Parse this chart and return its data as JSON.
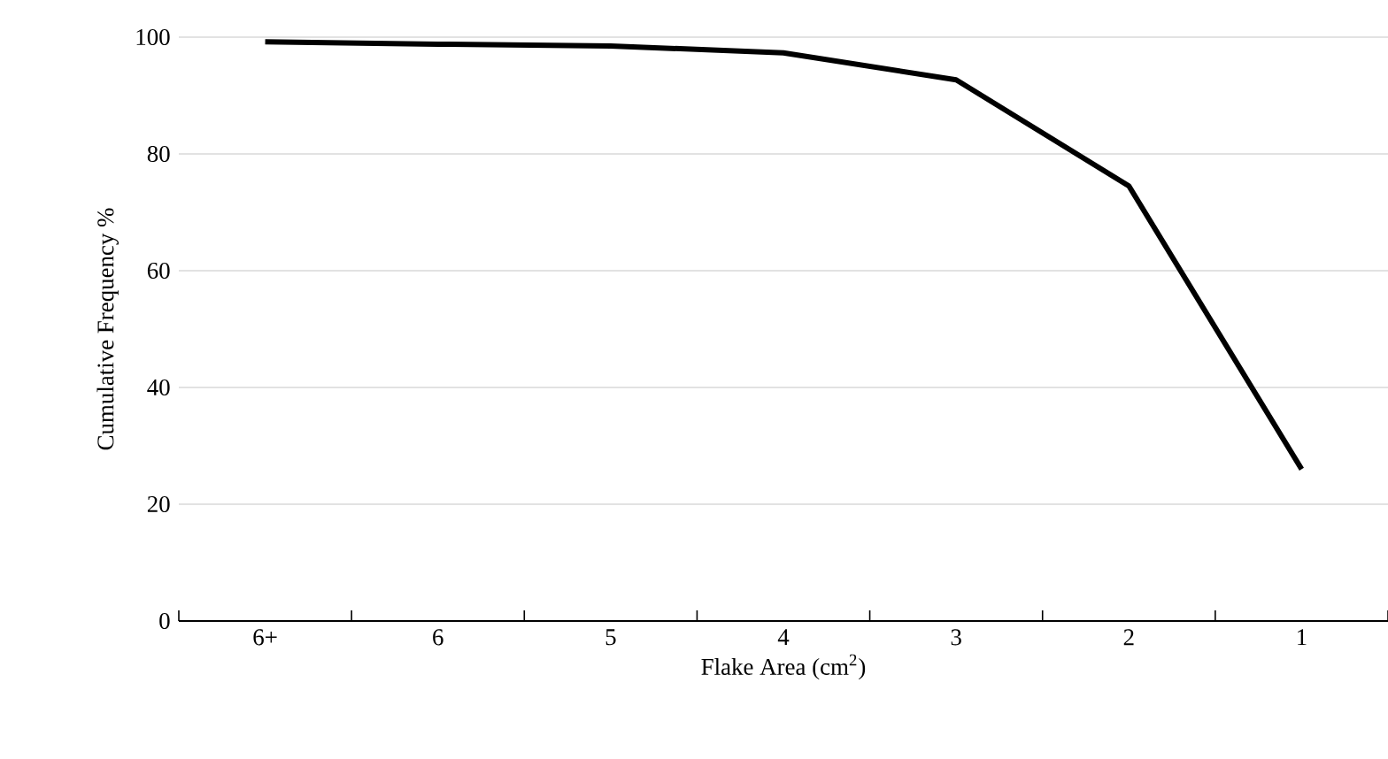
{
  "chart_data": {
    "type": "line",
    "xlabel": "Flake Area (cm$^{2}$)",
    "ylabel": "Cumulative Frequency %",
    "categories": [
      "6+",
      "6",
      "5",
      "4",
      "3",
      "2",
      "1"
    ],
    "series": [
      {
        "color": "#000000",
        "values": [
          99.2,
          98.8,
          98.5,
          97.3,
          92.7,
          74.5,
          26
        ]
      }
    ],
    "ylim": [
      0,
      100
    ],
    "yticks": [
      0,
      20,
      40,
      60,
      80,
      100
    ],
    "grid": "y",
    "marker": "none",
    "line_style": "solid"
  }
}
